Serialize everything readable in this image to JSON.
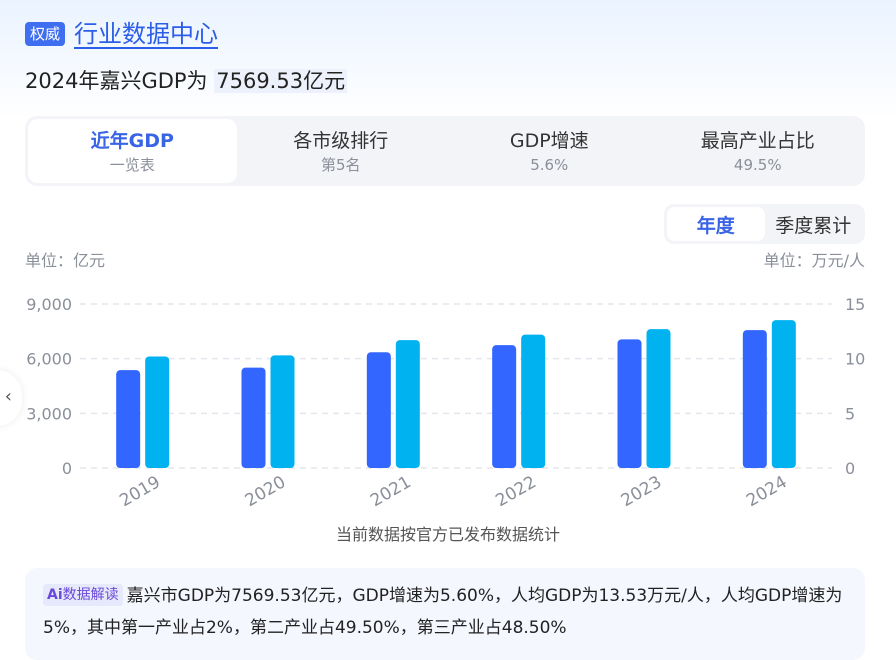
{
  "header": {
    "badge": "权威",
    "title": "行业数据中心"
  },
  "headline": {
    "prefix": "2024年嘉兴GDP为 ",
    "value": "7569.53亿元"
  },
  "tabs": [
    {
      "label": "近年GDP",
      "sub": "一览表",
      "active": true
    },
    {
      "label": "各市级排行",
      "sub": "第5名"
    },
    {
      "label": "GDP增速",
      "sub": "5.6%"
    },
    {
      "label": "最高产业占比",
      "sub": "49.5%"
    }
  ],
  "toggle": {
    "options": [
      "年度",
      "季度累计"
    ],
    "active": 0
  },
  "units": {
    "left": "单位：亿元",
    "right": "单位：万元/人"
  },
  "chart_data": {
    "type": "bar",
    "categories": [
      "2019",
      "2020",
      "2021",
      "2022",
      "2023",
      "2024"
    ],
    "series": [
      {
        "axis": "left",
        "color": "#3366ff",
        "values": [
          5370,
          5510,
          6355,
          6740,
          7060,
          7569.53
        ]
      },
      {
        "axis": "right",
        "color": "#00b2f0",
        "values": [
          10.2,
          10.3,
          11.7,
          12.2,
          12.7,
          13.53
        ]
      }
    ],
    "y_left": {
      "ticks": [
        "9,000",
        "6,000",
        "3,000",
        "0"
      ],
      "ylim": [
        0,
        9000
      ]
    },
    "y_right": {
      "ticks": [
        "15",
        "10",
        "5",
        "0"
      ],
      "ylim": [
        0,
        15
      ]
    },
    "grid": true
  },
  "note": "当前数据按官方已发布数据统计",
  "ai": {
    "tag_icon": "Ai",
    "tag_label": "数据解读",
    "text": "嘉兴市GDP为7569.53亿元，GDP增速为5.60%，人均GDP为13.53万元/人，人均GDP增速为5%，其中第一产业占2%，第二产业占49.50%，第三产业占48.50%"
  },
  "side_handle_icon": "chevron-left-icon"
}
